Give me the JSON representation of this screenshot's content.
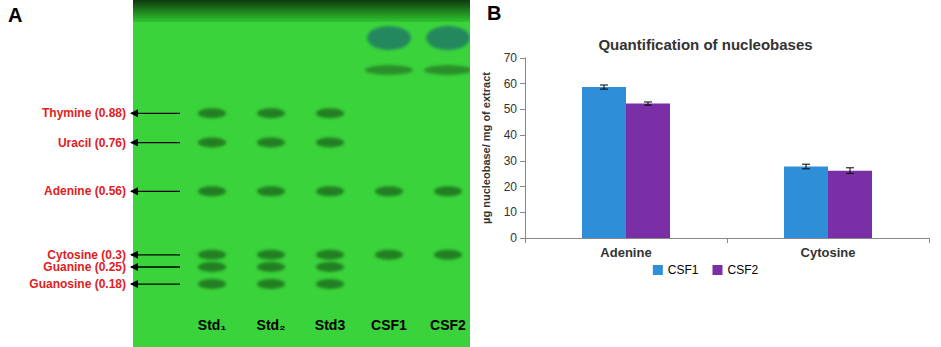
{
  "plate": {
    "panel_label": "A",
    "compounds": [
      {
        "name": "Thymine",
        "rf": 0.88,
        "label": "Thymine (0.88)"
      },
      {
        "name": "Uracil",
        "rf": 0.76,
        "label": "Uracil (0.76)"
      },
      {
        "name": "Adenine",
        "rf": 0.56,
        "label": "Adenine (0.56)"
      },
      {
        "name": "Cytosine",
        "rf": 0.3,
        "label": "Cytosine (0.3)"
      },
      {
        "name": "Guanine",
        "rf": 0.25,
        "label": "Guanine (0.25)"
      },
      {
        "name": "Guanosine",
        "rf": 0.18,
        "label": "Guanosine (0.18)"
      }
    ],
    "lanes": [
      {
        "label": "Std₁",
        "spots": [
          "Thymine",
          "Uracil",
          "Adenine",
          "Cytosine",
          "Guanine",
          "Guanosine"
        ]
      },
      {
        "label": "Std₂",
        "spots": [
          "Thymine",
          "Uracil",
          "Adenine",
          "Cytosine",
          "Guanine",
          "Guanosine"
        ]
      },
      {
        "label": "Std3",
        "spots": [
          "Thymine",
          "Uracil",
          "Adenine",
          "Cytosine",
          "Guanine",
          "Guanosine"
        ]
      },
      {
        "label": "CSF1",
        "spots": [
          "Adenine",
          "Cytosine"
        ]
      },
      {
        "label": "CSF2",
        "spots": [
          "Adenine",
          "Cytosine"
        ]
      }
    ]
  },
  "chart_data": {
    "panel_label": "B",
    "type": "bar",
    "title": "Quantification of nucleobases",
    "y_label": "µg nucleobase/ mg of extract",
    "categories": [
      "Adenine",
      "Cytosine"
    ],
    "series": [
      {
        "name": "CSF1",
        "color": "#2E8FD8",
        "values": [
          58.7,
          27.8
        ],
        "errors": [
          0.8,
          0.9
        ]
      },
      {
        "name": "CSF2",
        "color": "#7B2FA6",
        "values": [
          52.3,
          26.2
        ],
        "errors": [
          0.6,
          1.1
        ]
      }
    ],
    "ylim": [
      0,
      70
    ],
    "yticks": [
      0,
      10,
      20,
      30,
      40,
      50,
      60,
      70
    ],
    "grid": false,
    "legend": "bottom"
  }
}
